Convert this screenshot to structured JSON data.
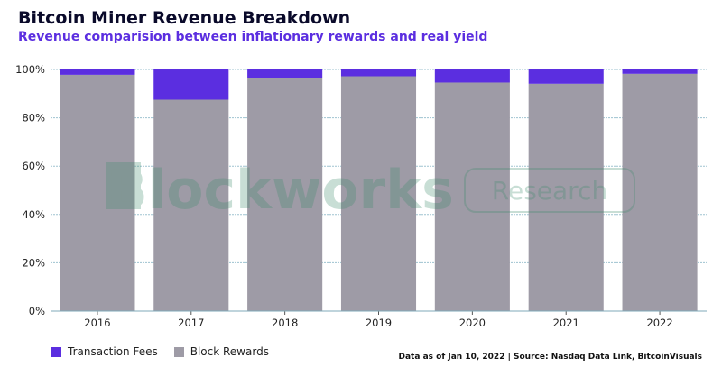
{
  "header": {
    "title": "Bitcoin Miner Revenue Breakdown",
    "subtitle": "Revenue comparision between inflationary rewards and real yield"
  },
  "watermark": {
    "brand": "Blockworks",
    "label": "Research"
  },
  "footer": {
    "source": "Data as of Jan 10, 2022 | Source: Nasdaq Data Link, BitcoinVisuals"
  },
  "colors": {
    "transaction_fees": "#5b2ee0",
    "block_rewards": "#9e9ba6",
    "grid": "#9fc3d0"
  },
  "chart_data": {
    "type": "bar",
    "stacked": true,
    "categories": [
      "2016",
      "2017",
      "2018",
      "2019",
      "2020",
      "2021",
      "2022"
    ],
    "series": [
      {
        "name": "Block Rewards",
        "values": [
          97.8,
          87.5,
          96.4,
          97.2,
          94.6,
          94.1,
          98.2
        ]
      },
      {
        "name": "Transaction Fees",
        "values": [
          2.2,
          12.5,
          3.6,
          2.8,
          5.4,
          5.9,
          1.8
        ]
      }
    ],
    "yticks": [
      "0%",
      "20%",
      "40%",
      "60%",
      "80%",
      "100%"
    ],
    "ylim": [
      0,
      100
    ],
    "grid": true,
    "legend": "bottom-left"
  }
}
